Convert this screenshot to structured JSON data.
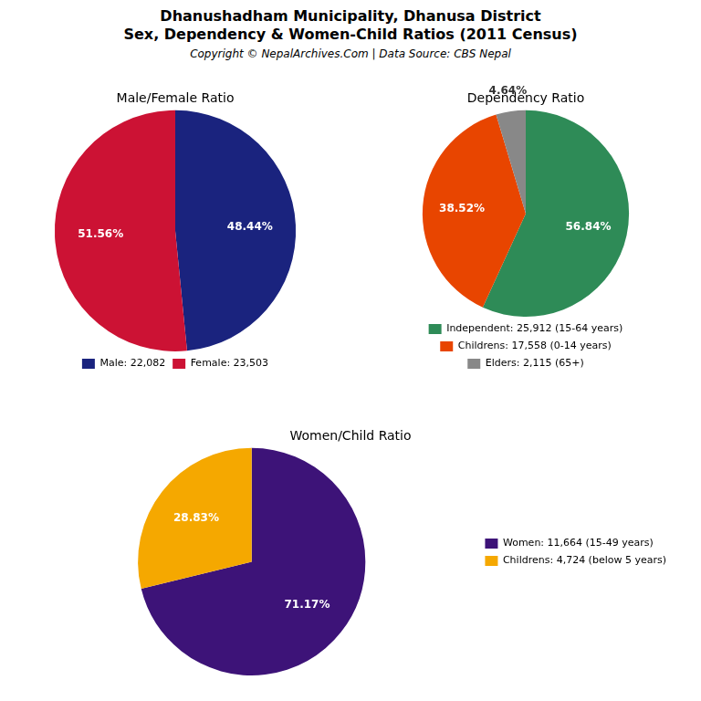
{
  "title": [
    "Dhanushadham Municipality, Dhanusa District",
    "Sex, Dependency & Women-Child Ratios (2011 Census)"
  ],
  "subtitle": "Copyright © NepalArchives.Com | Data Source: CBS Nepal",
  "chart_data": [
    {
      "type": "pie",
      "title": "Male/Female Ratio",
      "categories": [
        "Male: 22,082",
        "Female: 23,503"
      ],
      "values": [
        48.44,
        51.56
      ],
      "value_labels": [
        "48.44%",
        "51.56%"
      ],
      "colors": [
        "#1a237e",
        "#cc1234"
      ],
      "data_labels": true,
      "legend": "bottom"
    },
    {
      "type": "pie",
      "title": "Dependency Ratio",
      "categories": [
        "Independent: 25,912 (15-64 years)",
        "Childrens: 17,558 (0-14 years)",
        "Elders: 2,115 (65+)"
      ],
      "values": [
        56.84,
        38.52,
        4.64
      ],
      "value_labels": [
        "56.84%",
        "38.52%",
        "4.64%"
      ],
      "colors": [
        "#2e8b57",
        "#e84500",
        "#888888"
      ],
      "data_labels": true,
      "legend": "bottom"
    },
    {
      "type": "pie",
      "title": "Women/Child Ratio",
      "categories": [
        "Women: 11,664 (15-49 years)",
        "Childrens: 4,724 (below 5 years)"
      ],
      "values": [
        71.17,
        28.83
      ],
      "value_labels": [
        "71.17%",
        "28.83%"
      ],
      "colors": [
        "#3d1378",
        "#f5a800"
      ],
      "data_labels": true,
      "legend": "right"
    }
  ]
}
